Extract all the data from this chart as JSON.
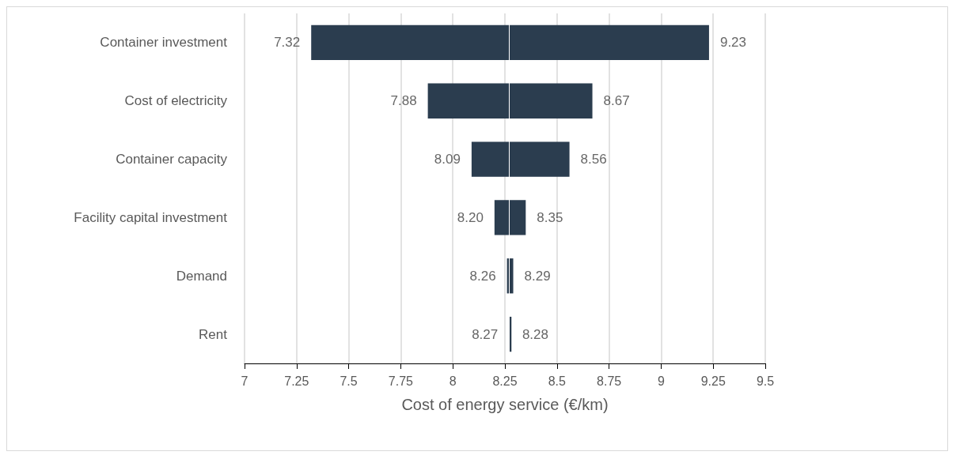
{
  "chart_data": {
    "type": "bar",
    "orientation": "horizontal",
    "xlabel": "Cost of energy service (€/km)",
    "categories": [
      "Container investment",
      "Cost of electricity",
      "Container capacity",
      "Facility capital investment",
      "Demand",
      "Rent"
    ],
    "base": [
      7.32,
      7.88,
      8.09,
      8.2,
      8.26,
      8.27
    ],
    "values": [
      1.91,
      0.79,
      0.47,
      0.15,
      0.03,
      0.01
    ],
    "color": "#2b3d4f",
    "xlim": [
      7,
      9.5
    ],
    "xticks": [
      7,
      7.25,
      7.5,
      7.75,
      8,
      8.25,
      8.5,
      8.75,
      9,
      9.25,
      9.5
    ],
    "grid": "x",
    "ref_lines": [
      {
        "axis": "x",
        "value": 8.27,
        "color": "#ffffff"
      }
    ],
    "annotations": [
      {
        "text": "7.32",
        "x": 7.32,
        "y": "Container investment"
      },
      {
        "text": "9.23",
        "x": 9.23,
        "y": "Container investment"
      },
      {
        "text": "7.88",
        "x": 7.88,
        "y": "Cost of electricity"
      },
      {
        "text": "8.67",
        "x": 8.67,
        "y": "Cost of electricity"
      },
      {
        "text": "8.09",
        "x": 8.09,
        "y": "Container capacity"
      },
      {
        "text": "8.56",
        "x": 8.56,
        "y": "Container capacity"
      },
      {
        "text": "8.20",
        "x": 8.2,
        "y": "Facility capital investment"
      },
      {
        "text": "8.35",
        "x": 8.35,
        "y": "Facility capital investment"
      },
      {
        "text": "8.26",
        "x": 8.26,
        "y": "Demand"
      },
      {
        "text": "8.29",
        "x": 8.29,
        "y": "Demand"
      },
      {
        "text": "8.27",
        "x": 8.27,
        "y": "Rent"
      },
      {
        "text": "8.28",
        "x": 8.28,
        "y": "Rent"
      }
    ]
  }
}
